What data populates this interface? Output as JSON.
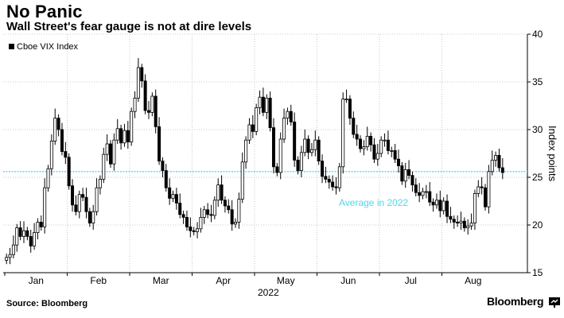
{
  "header": {
    "title": "No Panic",
    "subtitle": "Wall Street's fear gauge is not at dire levels"
  },
  "footer": {
    "source": "Source: Bloomberg",
    "brand": "Bloomberg"
  },
  "chart_data": {
    "type": "candlestick",
    "title": "No Panic",
    "subtitle": "Wall Street's fear gauge is not at dire levels",
    "legend": {
      "label": "Cboe VIX Index",
      "position": "top-left"
    },
    "xlabel": "2022",
    "ylabel": "Index points",
    "ylim": [
      15,
      40
    ],
    "yticks": [
      15,
      20,
      25,
      30,
      35,
      40
    ],
    "grid": true,
    "month_ticks": [
      "Jan",
      "Feb",
      "Mar",
      "Apr",
      "May",
      "Jun",
      "Jul",
      "Aug"
    ],
    "year_label": "2022",
    "colors": {
      "reference": "#4dd9e8",
      "candle": "#000000",
      "grid": "#c8c8c8"
    },
    "reference_line": {
      "label": "Average in 2022",
      "value": 25.6
    },
    "series": [
      {
        "name": "Jan",
        "closes": [
          16.6,
          16.9,
          17.9,
          19.7,
          18.8,
          19.4,
          18.8,
          17.8,
          19.2,
          20.3,
          19.8,
          23.9,
          25.9,
          28.8,
          31.2,
          30.0,
          27.7,
          27.1
        ]
      },
      {
        "name": "Feb",
        "closes": [
          24.1,
          22.1,
          21.4,
          23.2,
          22.9,
          21.4,
          20.2,
          21.4,
          23.9,
          24.8,
          27.4,
          28.5,
          26.4,
          28.9,
          30.1,
          28.6,
          29.9,
          28.7
        ]
      },
      {
        "name": "Mar",
        "closes": [
          31.9,
          33.3,
          36.5,
          35.1,
          32.0,
          31.8,
          33.5,
          30.3,
          26.7,
          25.7,
          23.9,
          22.8,
          23.2,
          22.3,
          21.1,
          20.8,
          19.8,
          19.4
        ]
      },
      {
        "name": "Apr",
        "closes": [
          19.3,
          19.6,
          20.8,
          21.6,
          21.1,
          21.0,
          22.6,
          24.2,
          22.6,
          22.0,
          21.6,
          20.1,
          20.3,
          22.7,
          26.6,
          28.9,
          30.5,
          29.8
        ]
      },
      {
        "name": "May",
        "closes": [
          32.3,
          33.4,
          31.8,
          33.3,
          30.2,
          26.1,
          25.5,
          29.0,
          31.2,
          31.9,
          30.8,
          26.8,
          25.7,
          27.6,
          29.0,
          27.6,
          27.9,
          28.9
        ]
      },
      {
        "name": "Jun",
        "closes": [
          26.7,
          25.1,
          24.8,
          24.5,
          24.0,
          23.9,
          26.1,
          33.2,
          33.2,
          31.2,
          29.5,
          29.0,
          28.0,
          28.2,
          29.3,
          28.4,
          26.9,
          27.5
        ]
      },
      {
        "name": "Jul",
        "closes": [
          28.9,
          28.9,
          27.8,
          27.8,
          26.9,
          26.2,
          24.6,
          25.8,
          25.2,
          24.2,
          23.4,
          23.1,
          23.5,
          23.5,
          22.4,
          22.1,
          22.6,
          21.5
        ]
      },
      {
        "name": "Aug",
        "closes": [
          22.5,
          20.9,
          20.6,
          20.3,
          20.2,
          20.4,
          19.7,
          19.9,
          20.2,
          23.3,
          24.0,
          23.9,
          21.9,
          25.6,
          26.8,
          27.3,
          26.0,
          25.5
        ]
      }
    ]
  }
}
